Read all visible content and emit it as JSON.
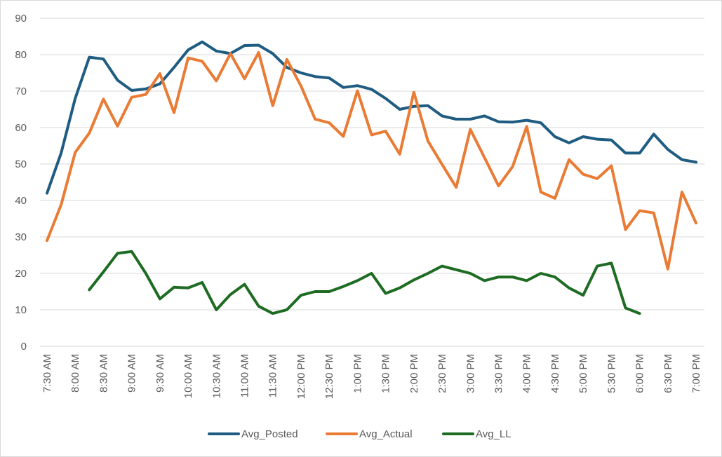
{
  "chart_data": {
    "type": "line",
    "title": "",
    "xlabel": "",
    "ylabel": "",
    "ylim": [
      0,
      90
    ],
    "yticks": [
      0,
      10,
      20,
      30,
      40,
      50,
      60,
      70,
      80,
      90
    ],
    "grid": true,
    "legend_position": "bottom",
    "x": [
      "7:30 AM",
      "7:45 AM",
      "8:00 AM",
      "8:15 AM",
      "8:30 AM",
      "8:45 AM",
      "9:00 AM",
      "9:15 AM",
      "9:30 AM",
      "9:45 AM",
      "10:00 AM",
      "10:15 AM",
      "10:30 AM",
      "10:45 AM",
      "11:00 AM",
      "11:15 AM",
      "11:30 AM",
      "11:45 AM",
      "12:00 PM",
      "12:15 PM",
      "12:30 PM",
      "12:45 PM",
      "1:00 PM",
      "1:15 PM",
      "1:30 PM",
      "1:45 PM",
      "2:00 PM",
      "2:15 PM",
      "2:30 PM",
      "2:45 PM",
      "3:00 PM",
      "3:15 PM",
      "3:30 PM",
      "3:45 PM",
      "4:00 PM",
      "4:15 PM",
      "4:30 PM",
      "4:45 PM",
      "5:00 PM",
      "5:15 PM",
      "5:30 PM",
      "5:45 PM",
      "6:00 PM",
      "6:15 PM",
      "6:30 PM",
      "6:45 PM",
      "7:00 PM"
    ],
    "xtick_labels": [
      "7:30 AM",
      "8:00 AM",
      "8:30 AM",
      "9:00 AM",
      "9:30 AM",
      "10:00 AM",
      "10:30 AM",
      "11:00 AM",
      "11:30 AM",
      "12:00 PM",
      "12:30 PM",
      "1:00 PM",
      "1:30 PM",
      "2:00 PM",
      "2:30 PM",
      "3:00 PM",
      "3:30 PM",
      "4:00 PM",
      "4:30 PM",
      "5:00 PM",
      "5:30 PM",
      "6:00 PM",
      "6:30 PM",
      "7:00 PM"
    ],
    "series": [
      {
        "name": "Avg_Posted",
        "color": "#1f5c82",
        "values": [
          42,
          53,
          68,
          79.3,
          78.8,
          73,
          70.2,
          70.6,
          72,
          76.5,
          81.3,
          83.5,
          81,
          80.3,
          82.5,
          82.6,
          80.3,
          76.5,
          75,
          74,
          73.6,
          71,
          71.5,
          70.5,
          68,
          65,
          65.8,
          66,
          63.2,
          62.3,
          62.3,
          63.2,
          61.6,
          61.5,
          62,
          61.3,
          57.5,
          55.8,
          57.5,
          56.8,
          56.6,
          53,
          53,
          58.2,
          54,
          51.2,
          50.5
        ]
      },
      {
        "name": "Avg_Actual",
        "color": "#e97b35",
        "values": [
          29,
          38.8,
          53.2,
          58.5,
          67.8,
          60.4,
          68.3,
          69.1,
          74.8,
          64.1,
          79.1,
          78.2,
          72.8,
          80.3,
          73.4,
          80.6,
          66,
          78.7,
          71.4,
          62.3,
          61.3,
          57.6,
          70.1,
          58,
          59,
          52.7,
          69.7,
          56.3,
          49.9,
          43.6,
          59.5,
          51.8,
          44,
          49.3,
          60.3,
          42.3,
          40.6,
          51.2,
          47.2,
          46,
          49.5,
          32,
          37.2,
          36.6,
          21.2,
          42.3,
          33.8
        ]
      },
      {
        "name": "Avg_LL",
        "color": "#1e6b22",
        "values": [
          null,
          null,
          null,
          15.5,
          20.4,
          25.5,
          26,
          20,
          13,
          16.2,
          16,
          17.5,
          10,
          14.2,
          17,
          11,
          9,
          10,
          14,
          15,
          15,
          16.4,
          18,
          20,
          14.5,
          16,
          18.2,
          20,
          22,
          21,
          20,
          18,
          19,
          19,
          18,
          20,
          19,
          16,
          14,
          22,
          22.8,
          10.5,
          9,
          null,
          null,
          null,
          null
        ]
      }
    ]
  }
}
